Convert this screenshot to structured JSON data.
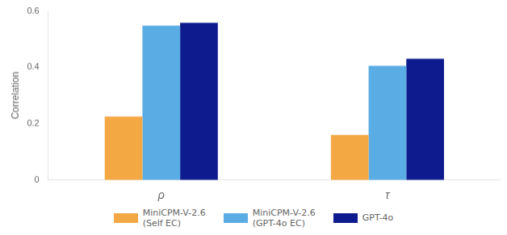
{
  "chart_data": {
    "type": "bar",
    "categories": [
      "ρ",
      "τ"
    ],
    "series": [
      {
        "name": "MiniCPM-V-2.6\n(Self EC)",
        "color": "#F4A843",
        "values": [
          0.225,
          0.16
        ]
      },
      {
        "name": "MiniCPM-V-2.6\n(GPT-4o EC)",
        "color": "#5AACE4",
        "values": [
          0.548,
          0.405
        ]
      },
      {
        "name": "GPT-4o",
        "color": "#0D1B8E",
        "values": [
          0.558,
          0.43
        ]
      }
    ],
    "ylabel": "Correlation",
    "ylim": [
      0.0,
      0.6
    ],
    "yticks": [
      0.0,
      0.2,
      0.4,
      0.6
    ],
    "grid": false,
    "legend": "bottom"
  }
}
